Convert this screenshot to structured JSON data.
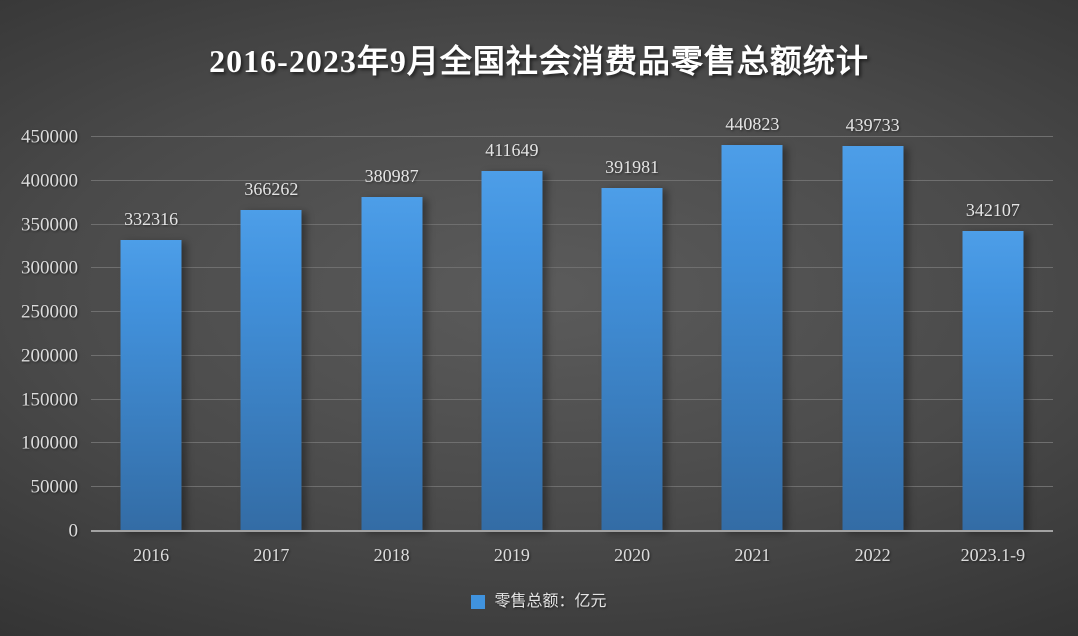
{
  "chart_data": {
    "type": "bar",
    "title": "2016-2023年9月全国社会消费品零售总额统计",
    "categories": [
      "2016",
      "2017",
      "2018",
      "2019",
      "2020",
      "2021",
      "2022",
      "2023.1-9"
    ],
    "values": [
      332316,
      366262,
      380987,
      411649,
      391981,
      440823,
      439733,
      342107
    ],
    "series_name": "零售总额：亿元",
    "xlabel": "",
    "ylabel": "",
    "ylim": [
      0,
      450000
    ],
    "yticks": [
      0,
      50000,
      100000,
      150000,
      200000,
      250000,
      300000,
      350000,
      400000,
      450000
    ],
    "grid": true,
    "data_labels": true,
    "legend_position": "bottom"
  },
  "legend": {
    "label": "零售总额：亿元"
  },
  "colors": {
    "background_center": "#5b5b5b",
    "background_edge": "#242424",
    "bar_top": "#4d9ee8",
    "bar_bottom": "#336ca5",
    "legend_swatch": "#4093de",
    "gridline": "#6f6f6f",
    "axis_line": "#a2a2a2",
    "tick_text": "#dcdcdc",
    "data_label_text": "#e4e4e4",
    "title_text": "#ffffff"
  }
}
